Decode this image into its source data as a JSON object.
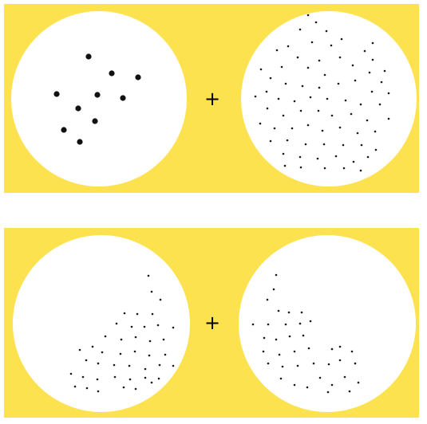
{
  "colors": {
    "background": "#FDE250",
    "circle": "#FFFFFF",
    "dot_large": "#111111",
    "dot_small": "#1a1a1a",
    "plus": "#000000"
  },
  "panels": [
    {
      "operator": "+",
      "left_dot_style": "large",
      "right_dot_style": "small"
    },
    {
      "operator": "+",
      "left_dot_style": "small",
      "right_dot_style": "small"
    }
  ]
}
